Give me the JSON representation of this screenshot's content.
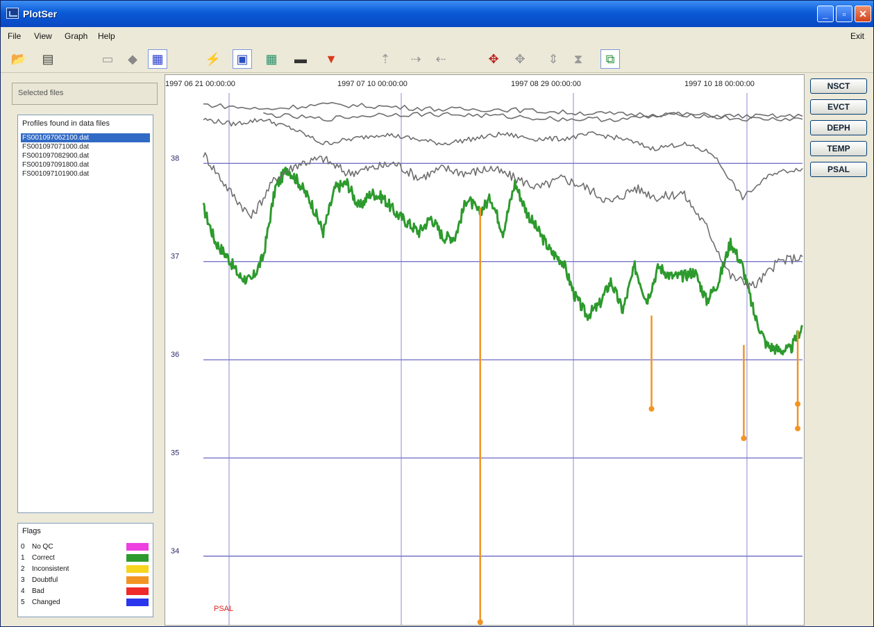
{
  "window": {
    "title": "PlotSer"
  },
  "menu": {
    "items": [
      "File",
      "View",
      "Graph",
      "Help"
    ],
    "right": "Exit"
  },
  "toolbar": {
    "buttons": [
      {
        "name": "open-folder-icon",
        "x": 12
      },
      {
        "name": "document-icon",
        "x": 54
      },
      {
        "name": "scale-icon",
        "x": 140
      },
      {
        "name": "diamond-marker-icon",
        "x": 176
      },
      {
        "name": "grid-icon",
        "x": 212
      },
      {
        "name": "plot-line-icon",
        "x": 292
      },
      {
        "name": "chart-view-icon",
        "x": 334
      },
      {
        "name": "table-view-icon",
        "x": 376
      },
      {
        "name": "profile-icon",
        "x": 418
      },
      {
        "name": "color-icon",
        "x": 462
      },
      {
        "name": "move-up-icon",
        "x": 540
      },
      {
        "name": "move-right-icon",
        "x": 584
      },
      {
        "name": "move-left-icon",
        "x": 620
      },
      {
        "name": "zoom-in-icon",
        "x": 696
      },
      {
        "name": "zoom-out-icon",
        "x": 734
      },
      {
        "name": "expand-vertical-icon",
        "x": 782
      },
      {
        "name": "compress-vertical-icon",
        "x": 818
      },
      {
        "name": "fit-view-icon",
        "x": 864
      }
    ]
  },
  "left_panel": {
    "header": "Selected files",
    "file_box_title": "Profiles found in data files",
    "files": [
      "FS001097062100.dat",
      "FS001097071000.dat",
      "FS001097082900.dat",
      "FS001097091800.dat",
      "FS001097101900.dat"
    ],
    "flags_title": "Flags",
    "flags": [
      {
        "code": "0",
        "name": "No QC",
        "color": "#ee3fe0"
      },
      {
        "code": "1",
        "name": "Correct",
        "color": "#2d9a2d"
      },
      {
        "name": "Inconsistent",
        "code": "2",
        "color": "#f7d51e"
      },
      {
        "code": "3",
        "name": "Doubtful",
        "color": "#f29423"
      },
      {
        "code": "4",
        "name": "Bad",
        "color": "#ee2a2a"
      },
      {
        "code": "5",
        "name": "Changed",
        "color": "#2a36ee"
      }
    ]
  },
  "right_panel": {
    "buttons": [
      "NSCT",
      "EVCT",
      "DEPH",
      "TEMP",
      "PSAL"
    ]
  },
  "chart_data": {
    "type": "line",
    "x_ticks": [
      "1997 06 21 00:00:00",
      "1997 07 10 00:00:00",
      "1997 08 29 00:00:00",
      "1997 10 18 00:00:00"
    ],
    "y_ticks": [
      "38",
      "37",
      "36",
      "35",
      "34"
    ],
    "ylim": [
      33.3,
      38.9
    ],
    "series_label": "PSAL",
    "series": [
      {
        "name": "",
        "color": "#2d9a2d",
        "x": [
          0,
          2,
          4,
          6,
          8,
          10,
          12,
          14,
          16,
          18,
          20,
          22,
          24,
          26,
          28,
          30,
          32,
          34,
          36,
          38,
          40,
          42,
          44,
          46,
          48,
          50,
          52,
          54,
          56,
          58,
          60,
          62,
          64,
          66,
          68,
          70,
          72,
          74,
          76,
          78,
          80,
          82,
          84,
          86,
          88,
          90,
          92,
          94,
          96,
          98,
          100
        ],
        "y": [
          37.55,
          37.2,
          37.05,
          36.85,
          36.8,
          37.05,
          37.75,
          37.95,
          37.8,
          37.6,
          37.3,
          37.75,
          37.8,
          37.55,
          37.7,
          37.65,
          37.5,
          37.4,
          37.3,
          37.45,
          37.25,
          37.25,
          37.65,
          37.5,
          37.65,
          37.3,
          37.8,
          37.5,
          37.3,
          37.1,
          37.0,
          36.65,
          36.45,
          36.55,
          36.8,
          36.5,
          36.95,
          36.6,
          36.95,
          36.85,
          36.85,
          36.9,
          36.6,
          36.8,
          37.2,
          36.95,
          36.45,
          36.15,
          36.1,
          36.1,
          36.35
        ]
      },
      {
        "name": "",
        "color": "#6e6e6e",
        "x": [
          0,
          4,
          8,
          12,
          16,
          20,
          24,
          28,
          32,
          36,
          40,
          44,
          48,
          52,
          56,
          60,
          64,
          68,
          72,
          76,
          80,
          84,
          88,
          92,
          96,
          100
        ],
        "y": [
          38.1,
          37.75,
          37.45,
          37.85,
          38.0,
          38.05,
          37.9,
          37.95,
          38.0,
          37.85,
          37.95,
          37.9,
          37.95,
          37.85,
          37.75,
          37.85,
          37.75,
          37.6,
          37.75,
          37.65,
          37.7,
          37.35,
          36.85,
          36.75,
          37.0,
          37.05
        ]
      },
      {
        "name": "",
        "color": "#6e6e6e",
        "x": [
          0,
          5,
          10,
          15,
          20,
          25,
          30,
          35,
          40,
          45,
          50,
          55,
          60,
          65,
          70,
          75,
          80,
          85,
          90,
          95,
          100
        ],
        "y": [
          38.45,
          38.4,
          38.45,
          38.35,
          38.2,
          38.25,
          38.3,
          38.25,
          38.2,
          38.25,
          38.3,
          38.25,
          38.25,
          38.3,
          38.25,
          38.15,
          38.2,
          38.1,
          37.65,
          37.9,
          37.95
        ]
      },
      {
        "name": "",
        "color": "#6e6e6e",
        "x": [
          0,
          10,
          20,
          30,
          40,
          50,
          60,
          70,
          80,
          90,
          100
        ],
        "y": [
          38.6,
          38.55,
          38.6,
          38.58,
          38.55,
          38.55,
          38.52,
          38.5,
          38.5,
          38.48,
          38.48
        ]
      },
      {
        "name": "",
        "color": "#6e6e6e",
        "x": [
          10,
          20,
          30,
          40,
          50,
          60,
          70,
          80,
          90,
          100
        ],
        "y": [
          38.5,
          38.45,
          38.5,
          38.5,
          38.48,
          38.45,
          38.45,
          38.5,
          38.45,
          38.45
        ]
      }
    ],
    "flagged_points": [
      {
        "x": 46.2,
        "y_from": 37.55,
        "y_to": 33.3
      },
      {
        "x": 74.8,
        "y_from": 36.45,
        "y_to": 35.5
      },
      {
        "x": 90.2,
        "y_from": 36.15,
        "y_to": 35.2
      },
      {
        "x": 99.2,
        "y_from": 36.3,
        "y_to": 35.55
      },
      {
        "x": 99.2,
        "y_from": 35.55,
        "y_to": 35.3
      }
    ],
    "flagged_color": "#f29423"
  }
}
